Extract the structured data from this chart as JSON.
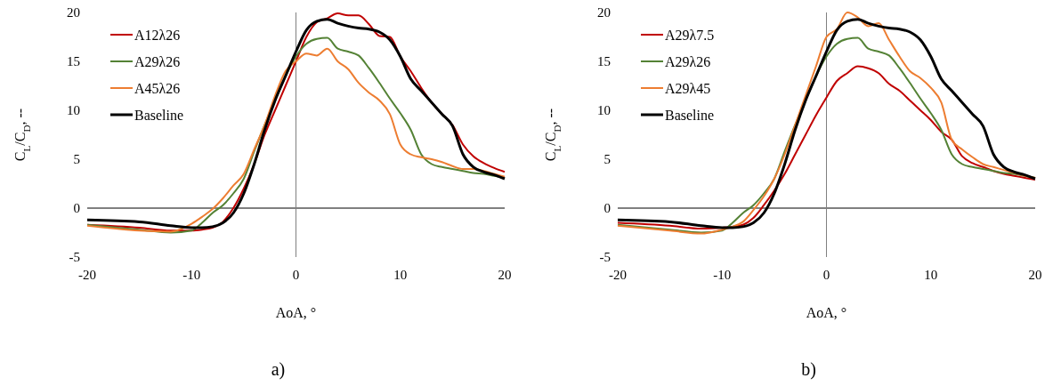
{
  "chart_data": [
    {
      "type": "line",
      "xlabel": "AoA, °",
      "ylabel": "C$_{L}$/C$_{D}$, --",
      "annotations": [
        "a)"
      ],
      "legend": "top left",
      "grid": false,
      "xlim": [
        -20,
        20
      ],
      "ylim": [
        -5,
        20
      ],
      "xticks": [
        -20,
        -10,
        0,
        10,
        20
      ],
      "yticks": [
        -5,
        0,
        5,
        10,
        15,
        20
      ],
      "x": [
        -20,
        -15,
        -12,
        -10,
        -9,
        -8,
        -7,
        -6,
        -5,
        -4,
        -3,
        -2,
        -1,
        0,
        1,
        2,
        3,
        4,
        5,
        6,
        7,
        8,
        9,
        10,
        11,
        12,
        13,
        14,
        15,
        16,
        17,
        18,
        19,
        20
      ],
      "series": [
        {
          "name": "A12λ26",
          "color": "#c00000",
          "values": [
            -1.7,
            -2.0,
            -2.3,
            -2.3,
            -2.2,
            -2.0,
            -1.4,
            0,
            2,
            4.5,
            7.5,
            10,
            12.5,
            15,
            17.5,
            19,
            19.4,
            19.9,
            19.7,
            19.7,
            18.8,
            17.6,
            17.5,
            15.5,
            14,
            12.3,
            10.8,
            9.6,
            8.5,
            6.5,
            5.3,
            4.6,
            4.1,
            3.7
          ]
        },
        {
          "name": "A29λ26",
          "color": "#548235",
          "values": [
            -1.7,
            -2.2,
            -2.5,
            -2.3,
            -1.5,
            -0.5,
            0.3,
            1.5,
            3,
            5.8,
            8.5,
            11,
            13.5,
            15.5,
            16.8,
            17.3,
            17.4,
            16.3,
            16,
            15.6,
            14.3,
            12.8,
            11.2,
            9.7,
            8,
            5.5,
            4.5,
            4.2,
            4,
            3.8,
            3.6,
            3.5,
            3.3,
            3.1
          ]
        },
        {
          "name": "A45λ26",
          "color": "#ed7d31",
          "values": [
            -1.8,
            -2.3,
            -2.4,
            -1.6,
            -0.9,
            -0.1,
            1,
            2.3,
            3.5,
            6,
            8.5,
            11.5,
            14,
            15,
            15.8,
            15.6,
            16.3,
            15,
            14.2,
            12.8,
            11.8,
            11,
            9.6,
            6.5,
            5.5,
            5.2,
            5,
            4.7,
            4.3,
            4,
            4,
            3.8,
            3.5,
            3.2
          ]
        },
        {
          "name": "Baseline",
          "color": "#000000",
          "values": [
            -1.2,
            -1.4,
            -1.8,
            -2.0,
            -2.0,
            -1.9,
            -1.5,
            -0.5,
            1.5,
            4.5,
            8,
            11,
            13.5,
            16,
            18.2,
            19.1,
            19.3,
            18.9,
            18.6,
            18.4,
            18.3,
            18,
            17.2,
            15.5,
            13.2,
            12,
            10.8,
            9.6,
            8.4,
            5.5,
            4.2,
            3.7,
            3.4,
            3.0
          ]
        }
      ]
    },
    {
      "type": "line",
      "xlabel": "AoA, °",
      "ylabel": "C$_{L}$/C$_{D}$, --",
      "annotations": [
        "b)"
      ],
      "legend": "top left",
      "grid": false,
      "xlim": [
        -20,
        20
      ],
      "ylim": [
        -5,
        20
      ],
      "xticks": [
        -20,
        -10,
        0,
        10,
        20
      ],
      "yticks": [
        -5,
        0,
        5,
        10,
        15,
        20
      ],
      "x": [
        -20,
        -15,
        -12,
        -10,
        -9,
        -8,
        -7,
        -6,
        -5,
        -4,
        -3,
        -2,
        -1,
        0,
        1,
        2,
        3,
        4,
        5,
        6,
        7,
        8,
        9,
        10,
        11,
        12,
        13,
        14,
        15,
        16,
        17,
        18,
        19,
        20
      ],
      "series": [
        {
          "name": "A29λ7.5",
          "color": "#c00000",
          "values": [
            -1.5,
            -1.8,
            -2.1,
            -2.0,
            -1.9,
            -1.7,
            -1,
            0.3,
            1.8,
            3.5,
            5.5,
            7.5,
            9.5,
            11.3,
            13,
            13.8,
            14.5,
            14.3,
            13.8,
            12.7,
            12,
            11,
            10,
            9,
            7.8,
            7,
            5.3,
            4.6,
            4.2,
            3.8,
            3.5,
            3.3,
            3.1,
            2.9
          ]
        },
        {
          "name": "A29λ26",
          "color": "#548235",
          "values": [
            -1.7,
            -2.2,
            -2.5,
            -2.3,
            -1.5,
            -0.5,
            0.3,
            1.5,
            3,
            5.8,
            8.5,
            11,
            13.5,
            15.5,
            16.8,
            17.3,
            17.4,
            16.3,
            16,
            15.6,
            14.3,
            12.8,
            11.2,
            9.7,
            8,
            5.5,
            4.5,
            4.2,
            4,
            3.8,
            3.6,
            3.5,
            3.3,
            3.1
          ]
        },
        {
          "name": "A29λ45",
          "color": "#ed7d31",
          "values": [
            -1.8,
            -2.3,
            -2.6,
            -2.2,
            -1.9,
            -1.4,
            -0.2,
            1.2,
            3,
            5.5,
            8.5,
            11.5,
            14.5,
            17.5,
            18.3,
            20,
            19.5,
            18.6,
            18.9,
            17.2,
            15.5,
            14,
            13.3,
            12.3,
            10.8,
            7,
            6,
            5.2,
            4.5,
            4.2,
            3.9,
            3.6,
            3.3,
            3.1
          ]
        },
        {
          "name": "Baseline",
          "color": "#000000",
          "values": [
            -1.2,
            -1.4,
            -1.8,
            -2.0,
            -2.0,
            -1.9,
            -1.5,
            -0.5,
            1.5,
            4.5,
            8,
            11,
            13.5,
            16,
            18.2,
            19.1,
            19.3,
            18.9,
            18.6,
            18.4,
            18.3,
            18,
            17.2,
            15.5,
            13.2,
            12,
            10.8,
            9.6,
            8.4,
            5.5,
            4.2,
            3.7,
            3.4,
            3.0
          ]
        }
      ]
    }
  ]
}
